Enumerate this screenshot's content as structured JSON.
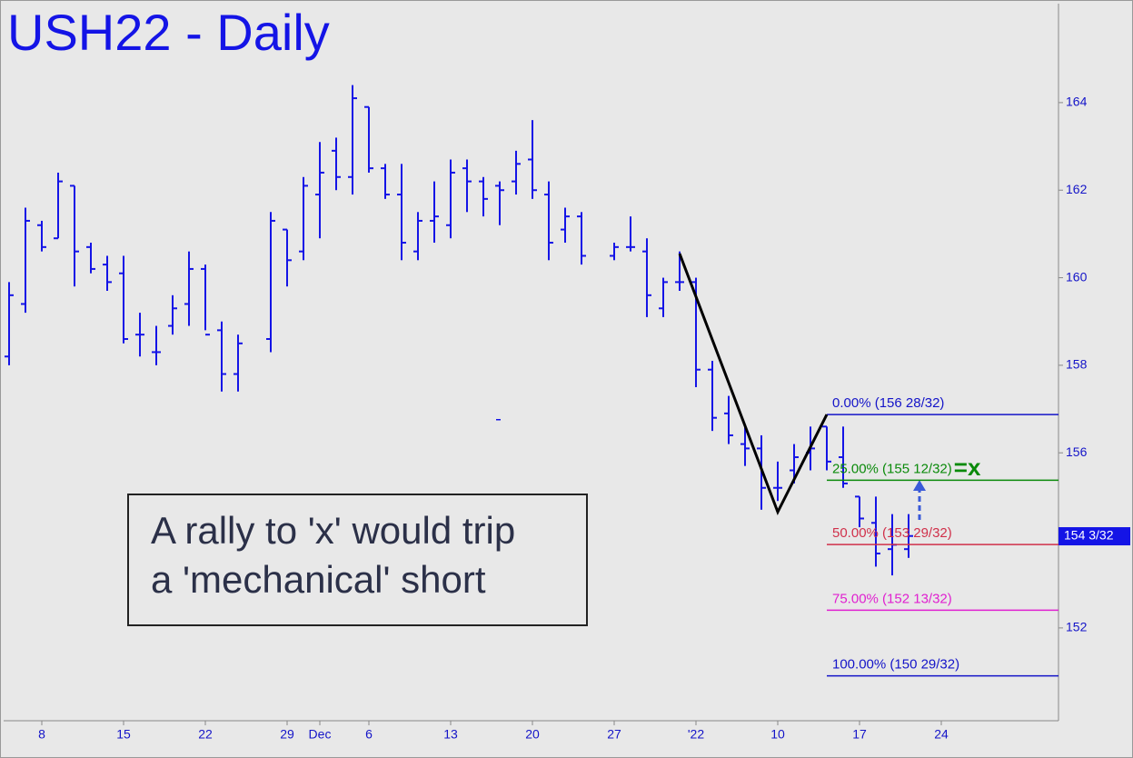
{
  "chart_data": {
    "type": "ohlc",
    "title": "USH22 - Daily",
    "categories": [
      null,
      null,
      "8",
      null,
      null,
      null,
      null,
      "15",
      null,
      null,
      null,
      null,
      "22",
      null,
      null,
      null,
      null,
      "29",
      null,
      "Dec",
      null,
      null,
      "6",
      null,
      null,
      null,
      null,
      "13",
      null,
      null,
      null,
      null,
      "20",
      null,
      null,
      null,
      null,
      "27",
      null,
      null,
      null,
      null,
      "'22",
      null,
      null,
      null,
      null,
      "10",
      null,
      null,
      null,
      null,
      "17",
      null,
      null,
      null,
      null,
      "24",
      null,
      null,
      null,
      null,
      null,
      null,
      null
    ],
    "color": "#1414e6",
    "open": [
      158.2,
      159.4,
      161.2,
      160.9,
      162.1,
      160.7,
      160.3,
      160.1,
      158.7,
      158.3,
      158.9,
      159.4,
      160.2,
      158.8,
      157.8,
      null,
      158.6,
      161.1,
      160.6,
      161.9,
      162.9,
      162.3,
      163.9,
      162.5,
      161.9,
      160.6,
      161.3,
      161.2,
      162.5,
      162.2,
      162.1,
      162.2,
      162.7,
      161.9,
      161.1,
      161.4,
      null,
      160.5,
      160.7,
      160.6,
      159.3,
      159.9,
      159.9,
      157.9,
      156.9,
      156.2,
      156.1,
      155.2,
      155.6,
      156.0,
      156.6,
      155.9,
      155.0,
      154.4,
      153.8,
      153.8,
      null,
      null,
      null,
      null,
      null,
      null,
      null,
      null,
      null
    ],
    "high": [
      159.9,
      161.6,
      161.3,
      162.4,
      162.1,
      160.8,
      160.5,
      160.5,
      159.2,
      158.9,
      159.6,
      160.6,
      160.3,
      159.0,
      158.7,
      null,
      161.5,
      161.1,
      162.3,
      163.1,
      163.2,
      164.4,
      163.9,
      162.6,
      162.6,
      161.5,
      162.2,
      162.7,
      162.7,
      162.3,
      162.2,
      162.9,
      163.6,
      162.2,
      161.6,
      161.5,
      null,
      160.8,
      161.4,
      160.9,
      160.0,
      160.6,
      160.0,
      158.1,
      157.3,
      156.6,
      156.4,
      155.8,
      156.2,
      156.6,
      156.6,
      156.6,
      155.0,
      155.0,
      154.6,
      154.6,
      null,
      null,
      null,
      null,
      null,
      null,
      null,
      null,
      null
    ],
    "low": [
      158.0,
      159.2,
      160.6,
      160.9,
      159.8,
      160.1,
      159.7,
      158.5,
      158.2,
      158.0,
      158.7,
      158.9,
      158.8,
      157.4,
      157.4,
      null,
      158.3,
      159.8,
      160.4,
      160.9,
      162.0,
      161.9,
      162.4,
      161.8,
      160.4,
      160.4,
      160.8,
      160.9,
      161.5,
      161.4,
      161.2,
      161.9,
      161.8,
      160.4,
      160.8,
      160.3,
      null,
      160.4,
      160.6,
      159.1,
      159.1,
      159.7,
      157.5,
      156.5,
      156.2,
      155.7,
      154.7,
      154.9,
      155.3,
      155.6,
      155.6,
      155.2,
      154.3,
      153.4,
      153.2,
      153.6,
      null,
      null,
      null,
      null,
      null,
      null,
      null,
      null,
      null
    ],
    "close": [
      159.6,
      161.3,
      160.7,
      162.2,
      160.6,
      160.2,
      159.9,
      158.6,
      158.7,
      158.3,
      159.3,
      160.2,
      158.7,
      157.8,
      158.5,
      null,
      161.3,
      160.4,
      162.1,
      162.4,
      162.3,
      164.1,
      162.5,
      161.9,
      160.8,
      161.3,
      161.4,
      162.4,
      162.2,
      161.8,
      162.0,
      162.6,
      162.0,
      160.8,
      161.4,
      160.5,
      null,
      160.7,
      160.7,
      159.6,
      159.9,
      159.9,
      157.9,
      156.8,
      156.4,
      156.1,
      155.2,
      155.2,
      155.9,
      156.1,
      155.8,
      155.3,
      154.5,
      153.7,
      153.9,
      154.1,
      null,
      null,
      null,
      null,
      null,
      null,
      null,
      null,
      null
    ],
    "ylim": [
      149.88,
      166.24
    ],
    "yticks": [
      152,
      154,
      156,
      158,
      160,
      162,
      164
    ],
    "last_price": {
      "value": 154.09375,
      "label": "154 3/32",
      "color": "#1414e6"
    },
    "pattern": {
      "color": "#000000",
      "points": [
        {
          "at": 41,
          "value": 160.55
        },
        {
          "at": 47,
          "value": 154.65
        },
        {
          "at": 50,
          "value": 156.875
        }
      ]
    },
    "levels": [
      {
        "value": 156.875,
        "label": "0.00% (156 28/32)",
        "color": "#1414c8"
      },
      {
        "value": 155.375,
        "label": "25.00% (155 12/32)",
        "color": "#0a8a0a"
      },
      {
        "value": 153.90625,
        "label": "50.00% (153 29/32)",
        "color": "#d0304a"
      },
      {
        "value": 152.40625,
        "label": "75.00% (152 13/32)",
        "color": "#e020d0"
      },
      {
        "value": 150.90625,
        "label": "100.00% (150 29/32)",
        "color": "#1414c8"
      }
    ],
    "target_mark": "=x",
    "annotation": [
      "A rally to 'x' would trip",
      "a 'mechanical' short"
    ]
  }
}
